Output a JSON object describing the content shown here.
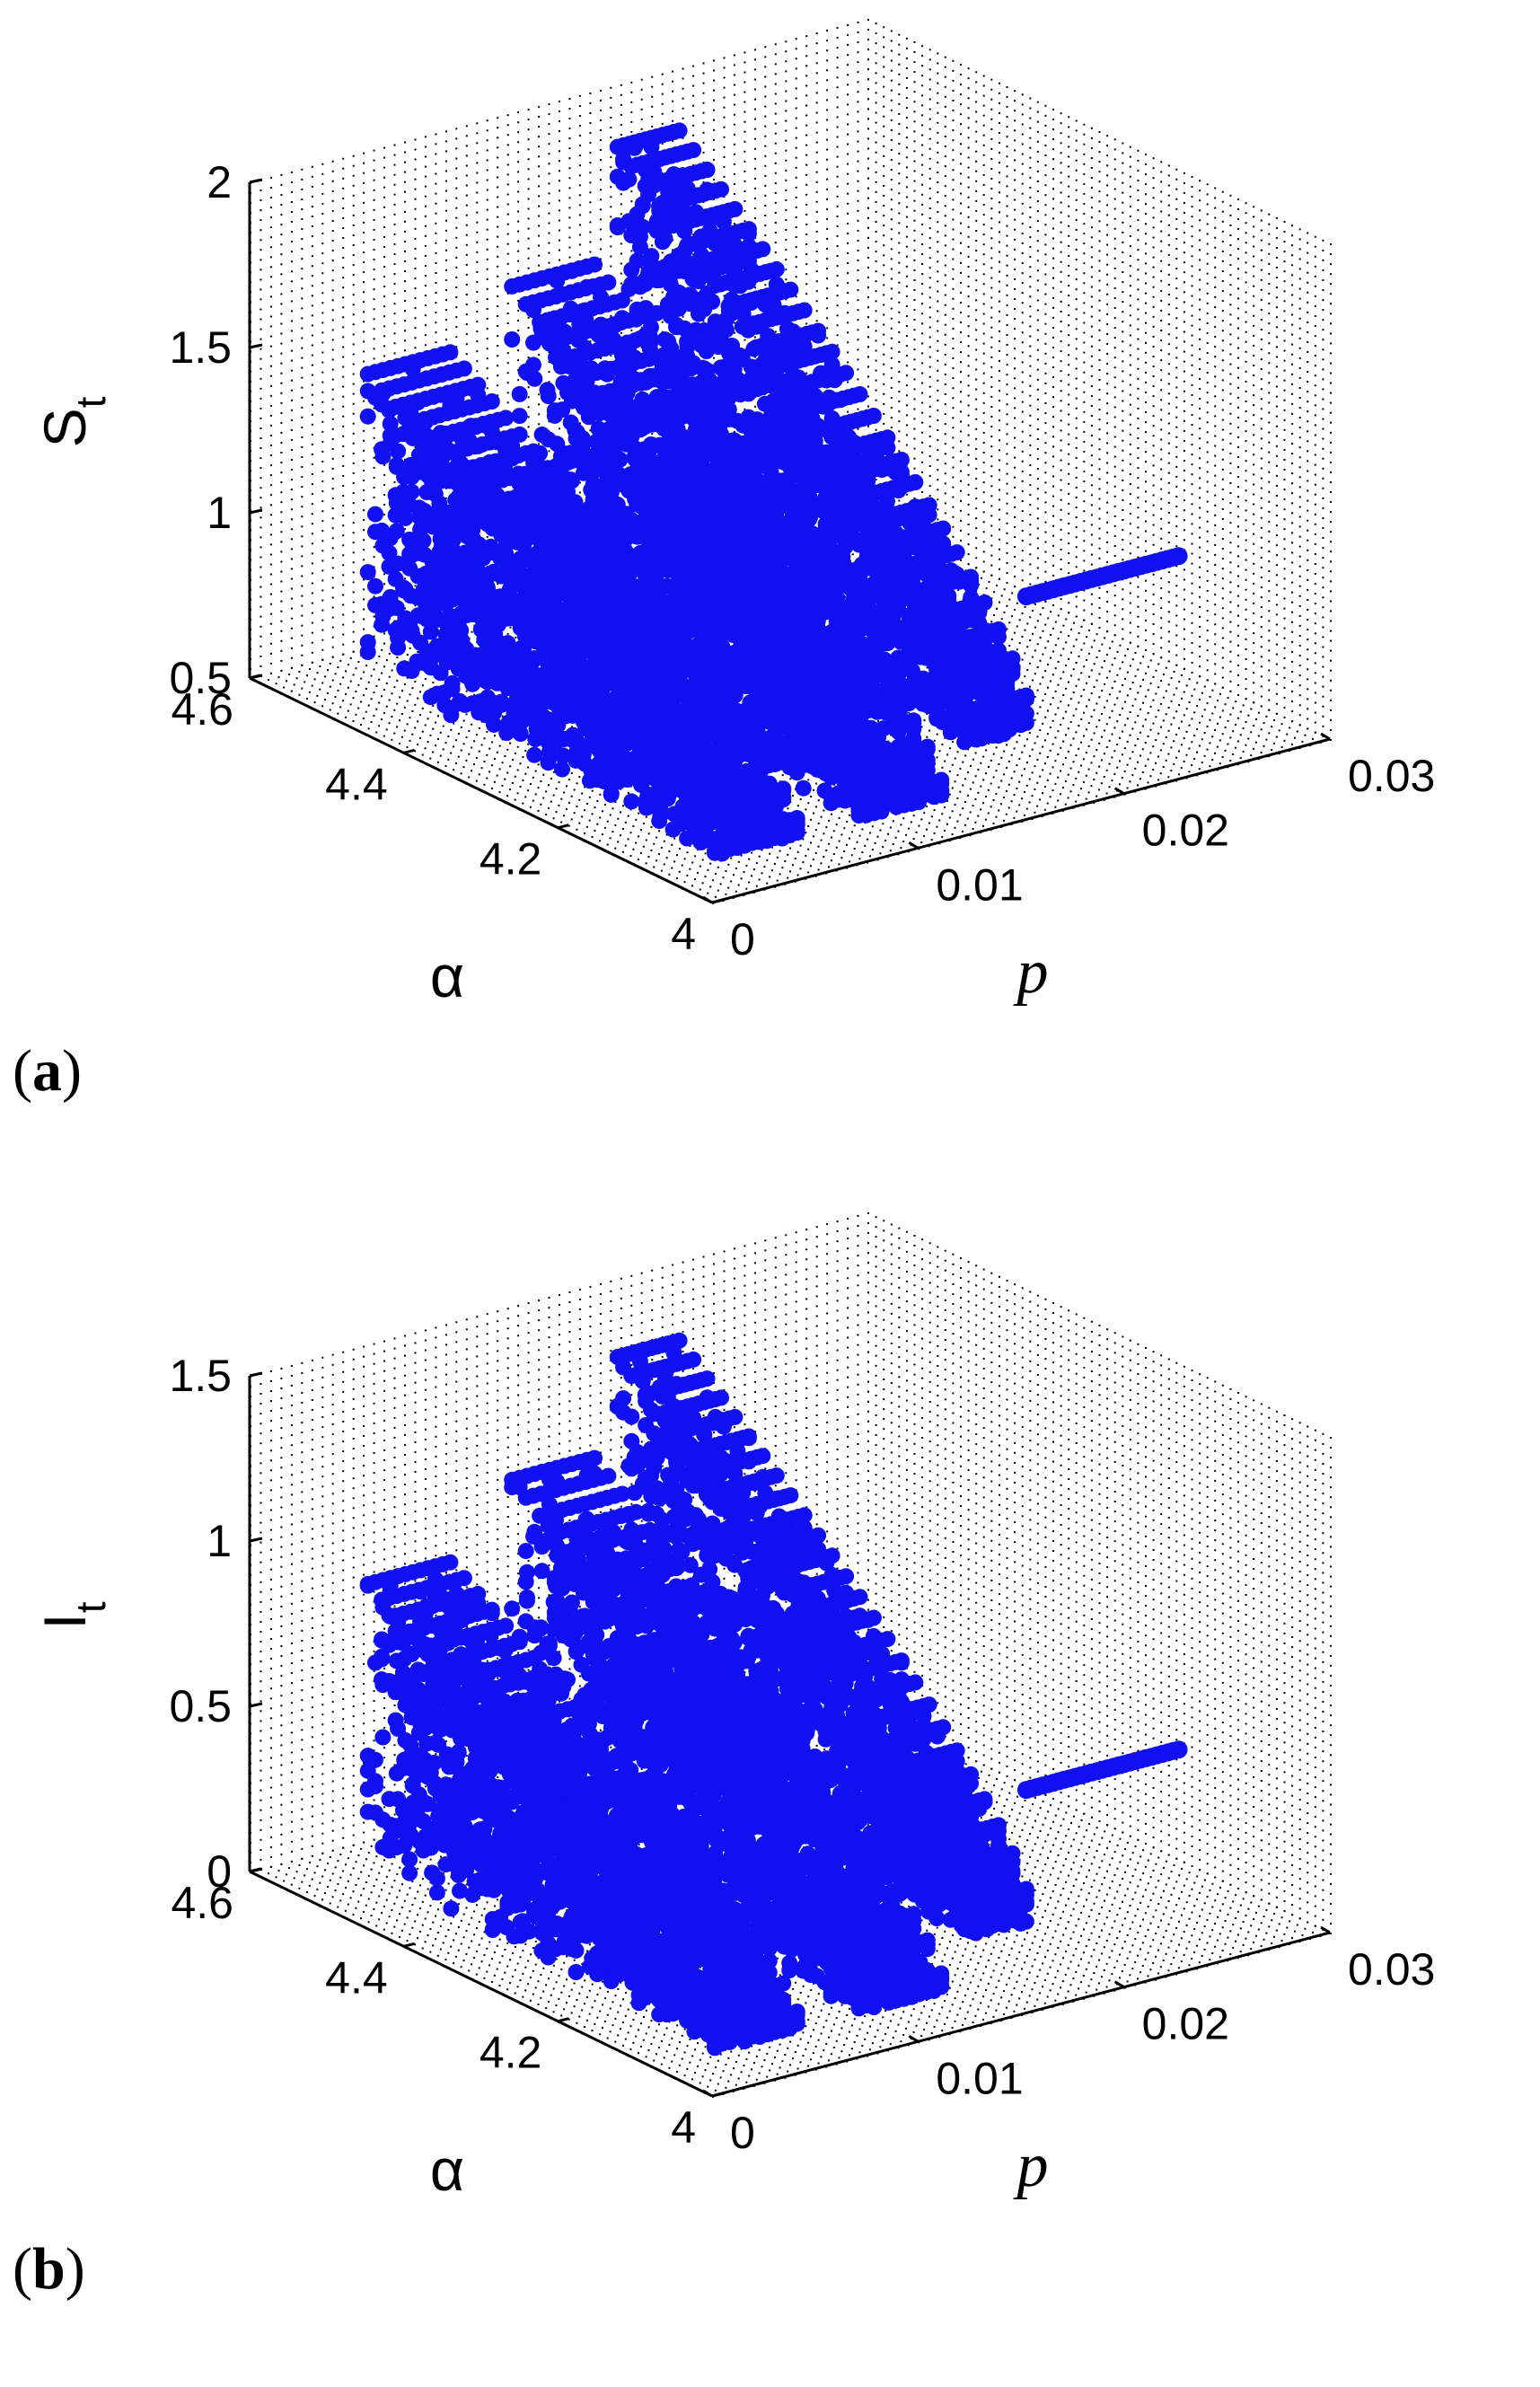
{
  "chart_data": [
    {
      "type": "scatter",
      "panel_label": "a",
      "dim": "3d",
      "zlabel_base": "S",
      "zlabel_sub": "t",
      "xlabel": "α",
      "ylabel": "p",
      "xlim": [
        4,
        4.6
      ],
      "ylim": [
        0,
        0.03
      ],
      "zlim": [
        0.5,
        2
      ],
      "xticks": [
        "4",
        "4.2",
        "4.4",
        "4.6"
      ],
      "yticks": [
        "0",
        "0.01",
        "0.02",
        "0.03"
      ],
      "zticks": [
        "0.5",
        "1",
        "1.5",
        "2"
      ],
      "grid": true,
      "color": "#1010f0",
      "series": [
        {
          "p_start": 0.002,
          "p_end": 0.006,
          "alpha": [
            4.05,
            4.5
          ],
          "z_low": [
            0.55,
            0.6
          ],
          "z_high": [
            0.6,
            1.5
          ],
          "tail": [
            4.1,
            0.85
          ]
        },
        {
          "p_start": 0.009,
          "p_end": 0.013,
          "alpha": [
            4.05,
            4.5
          ],
          "z_low": [
            0.55,
            0.6
          ],
          "z_high": [
            0.6,
            1.65
          ],
          "tail": [
            4.1,
            0.82
          ]
        },
        {
          "p_start": 0.016,
          "p_end": 0.019,
          "alpha": [
            4.1,
            4.55
          ],
          "z_low": [
            0.6,
            0.7
          ],
          "z_high": [
            0.7,
            1.9
          ],
          "tail": [
            4.1,
            1.0
          ]
        }
      ]
    },
    {
      "type": "scatter",
      "panel_label": "b",
      "dim": "3d",
      "zlabel_base": "I",
      "zlabel_sub": "t",
      "xlabel": "α",
      "ylabel": "p",
      "xlim": [
        4,
        4.6
      ],
      "ylim": [
        0,
        0.03
      ],
      "zlim": [
        0,
        1.5
      ],
      "xticks": [
        "4",
        "4.2",
        "4.4",
        "4.6"
      ],
      "yticks": [
        "0",
        "0.01",
        "0.02",
        "0.03"
      ],
      "zticks": [
        "0",
        "0.5",
        "1",
        "1.5"
      ],
      "grid": true,
      "color": "#1010f0",
      "series": [
        {
          "p_start": 0.002,
          "p_end": 0.006,
          "alpha": [
            4.05,
            4.5
          ],
          "z_low": [
            0.05,
            0.1
          ],
          "z_high": [
            0.1,
            0.95
          ],
          "tail": [
            4.1,
            0.3
          ]
        },
        {
          "p_start": 0.009,
          "p_end": 0.013,
          "alpha": [
            4.05,
            4.5
          ],
          "z_low": [
            0.05,
            0.1
          ],
          "z_high": [
            0.1,
            1.15
          ],
          "tail": [
            4.1,
            0.33
          ]
        },
        {
          "p_start": 0.016,
          "p_end": 0.019,
          "alpha": [
            4.1,
            4.55
          ],
          "z_low": [
            0.1,
            0.2
          ],
          "z_high": [
            0.2,
            1.35
          ],
          "tail": [
            4.1,
            0.5
          ]
        }
      ]
    }
  ]
}
